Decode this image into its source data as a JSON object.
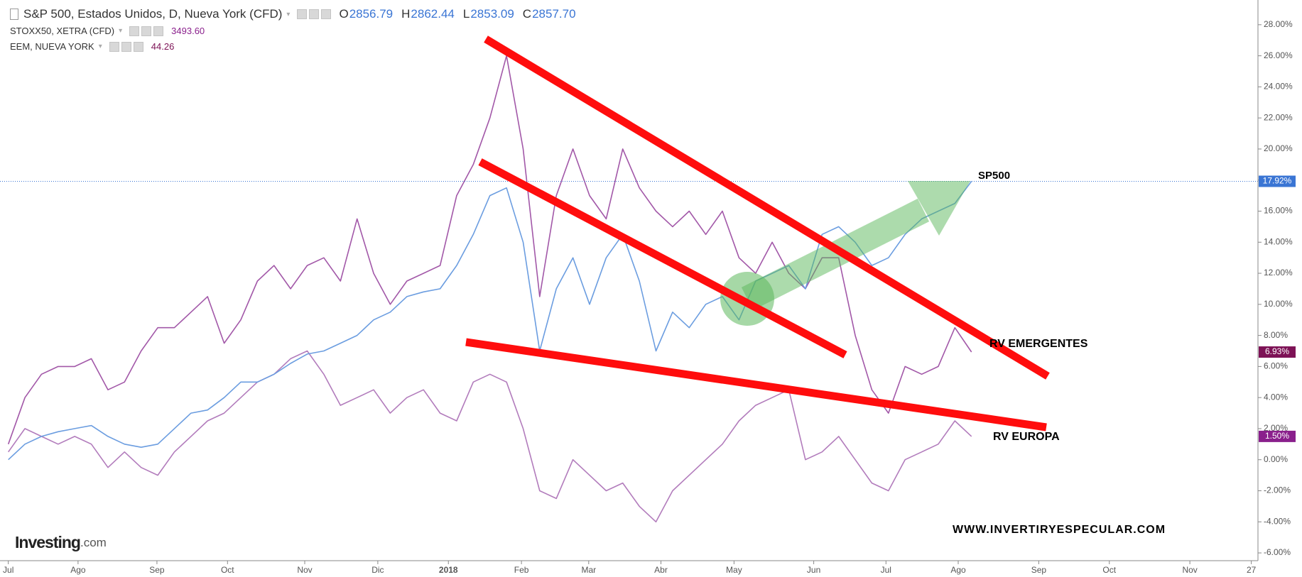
{
  "chart_data": {
    "type": "line",
    "x": [
      0,
      1,
      2,
      3,
      4,
      5,
      6,
      7,
      8,
      9,
      10,
      11,
      12,
      13,
      14,
      15,
      16,
      17,
      18,
      19,
      20,
      21,
      22,
      23,
      24,
      25,
      26,
      27,
      28,
      29,
      30,
      31,
      32,
      33,
      34,
      35,
      36,
      37,
      38,
      39,
      40,
      41,
      42,
      43,
      44,
      45,
      46,
      47,
      48,
      49,
      50,
      51,
      52,
      53,
      54,
      55,
      56,
      57,
      58
    ],
    "xlim": [
      -0.5,
      75.25
    ],
    "xticks": [
      {
        "value": 0,
        "label": "Jul"
      },
      {
        "value": 4.2,
        "label": "Ago"
      },
      {
        "value": 8.95,
        "label": "Sep"
      },
      {
        "value": 13.2,
        "label": "Oct"
      },
      {
        "value": 17.85,
        "label": "Nov"
      },
      {
        "value": 22.25,
        "label": "Dic"
      },
      {
        "value": 26.5,
        "label": "2018"
      },
      {
        "value": 30.9,
        "label": "Feb"
      },
      {
        "value": 34.95,
        "label": "Mar"
      },
      {
        "value": 39.3,
        "label": "Abr"
      },
      {
        "value": 43.7,
        "label": "May"
      },
      {
        "value": 48.5,
        "label": "Jun"
      },
      {
        "value": 52.85,
        "label": "Jul"
      },
      {
        "value": 57.2,
        "label": "Ago"
      },
      {
        "value": 62.05,
        "label": "Sep"
      },
      {
        "value": 66.3,
        "label": "Oct"
      },
      {
        "value": 71.15,
        "label": "Nov"
      },
      {
        "value": 74.85,
        "label": "27"
      }
    ],
    "ylim": [
      -6.5,
      29.5
    ],
    "yticks": [
      {
        "value": -6,
        "label": "-6.00%"
      },
      {
        "value": -4,
        "label": "-4.00%"
      },
      {
        "value": -2,
        "label": "-2.00%"
      },
      {
        "value": 0,
        "label": "0.00%"
      },
      {
        "value": 2,
        "label": "2.00%"
      },
      {
        "value": 4,
        "label": "4.00%"
      },
      {
        "value": 6,
        "label": "6.00%"
      },
      {
        "value": 8,
        "label": "8.00%"
      },
      {
        "value": 10,
        "label": "10.00%"
      },
      {
        "value": 12,
        "label": "12.00%"
      },
      {
        "value": 14,
        "label": "14.00%"
      },
      {
        "value": 16,
        "label": "16.00%"
      },
      {
        "value": 18,
        "label": "18.00%"
      },
      {
        "value": 20,
        "label": "20.00%"
      },
      {
        "value": 22,
        "label": "22.00%"
      },
      {
        "value": 24,
        "label": "24.00%"
      },
      {
        "value": 26,
        "label": "26.00%"
      },
      {
        "value": 28,
        "label": "28.00%"
      }
    ],
    "grid": false,
    "series": [
      {
        "name": "S&P 500, Estados Unidos, D, Nueva York (CFD)",
        "color": "#6b9de0",
        "label_color": "#3a75d4",
        "last_line": true,
        "quotes": [
          {
            "label": "O",
            "value": "2856.79"
          },
          {
            "label": "H",
            "value": "2862.44"
          },
          {
            "label": "L",
            "value": "2853.09"
          },
          {
            "label": "C",
            "value": "2857.70"
          }
        ],
        "values": [
          0.0,
          1.0,
          1.5,
          1.8,
          2.0,
          2.2,
          1.5,
          1.0,
          0.8,
          1.0,
          2.0,
          3.0,
          3.2,
          4.0,
          5.0,
          5.0,
          5.5,
          6.2,
          6.8,
          7.0,
          7.5,
          8.0,
          9.0,
          9.5,
          10.5,
          10.8,
          11.0,
          12.5,
          14.5,
          17.0,
          17.5,
          14.0,
          7.0,
          11.0,
          13.0,
          10.0,
          13.0,
          14.5,
          11.5,
          7.0,
          9.5,
          8.5,
          10.0,
          10.5,
          9.0,
          11.5,
          12.0,
          12.5,
          11.0,
          14.5,
          15.0,
          14.0,
          12.5,
          13.0,
          14.5,
          15.5,
          16.0,
          16.5,
          17.92
        ],
        "value_labels": [
          null,
          null,
          null,
          null,
          null,
          null,
          null,
          null,
          null,
          null,
          null,
          null,
          null,
          null,
          null,
          null,
          null,
          null,
          null,
          null,
          null,
          null,
          null,
          null,
          null,
          null,
          null,
          null,
          null,
          null,
          null,
          null,
          null,
          null,
          null,
          null,
          null,
          null,
          null,
          null,
          null,
          null,
          null,
          null,
          null,
          null,
          null,
          null,
          null,
          null,
          null,
          null,
          null,
          null,
          null,
          null,
          null,
          null,
          "17.92%"
        ]
      },
      {
        "name": "STOXX50, XETRA (CFD)",
        "color": "#b27cbc",
        "label_color": "#8a1f8c",
        "quotes": [
          {
            "value": "3493.60"
          }
        ],
        "values": [
          0.5,
          2.0,
          1.5,
          1.0,
          1.5,
          1.0,
          -0.5,
          0.5,
          -0.5,
          -1.0,
          0.5,
          1.5,
          2.5,
          3.0,
          4.0,
          5.0,
          5.5,
          6.5,
          7.0,
          5.5,
          3.5,
          4.0,
          4.5,
          3.0,
          4.0,
          4.5,
          3.0,
          2.5,
          5.0,
          5.5,
          5.0,
          2.0,
          -2.0,
          -2.5,
          0.0,
          -1.0,
          -2.0,
          -1.5,
          -3.0,
          -4.0,
          -2.0,
          -1.0,
          0.0,
          1.0,
          2.5,
          3.5,
          4.0,
          4.5,
          0.0,
          0.5,
          1.5,
          0.0,
          -1.5,
          -2.0,
          0.0,
          0.5,
          1.0,
          2.5,
          1.5
        ],
        "value_labels": [
          null,
          null,
          null,
          null,
          null,
          null,
          null,
          null,
          null,
          null,
          null,
          null,
          null,
          null,
          null,
          null,
          null,
          null,
          null,
          null,
          null,
          null,
          null,
          null,
          null,
          null,
          null,
          null,
          null,
          null,
          null,
          null,
          null,
          null,
          null,
          null,
          null,
          null,
          null,
          null,
          null,
          null,
          null,
          null,
          null,
          null,
          null,
          null,
          null,
          null,
          null,
          null,
          null,
          null,
          null,
          null,
          null,
          null,
          "1.50%"
        ]
      },
      {
        "name": "EEM, NUEVA YORK",
        "color": "#a258a8",
        "label_color": "#7d1256",
        "quotes": [
          {
            "value": "44.26"
          }
        ],
        "values": [
          1.0,
          4.0,
          5.5,
          6.0,
          6.0,
          6.5,
          4.5,
          5.0,
          7.0,
          8.5,
          8.5,
          9.5,
          10.5,
          7.5,
          9.0,
          11.5,
          12.5,
          11.0,
          12.5,
          13.0,
          11.5,
          15.5,
          12.0,
          10.0,
          11.5,
          12.0,
          12.5,
          17.0,
          19.0,
          22.0,
          26.0,
          20.0,
          10.5,
          17.0,
          20.0,
          17.0,
          15.5,
          20.0,
          17.5,
          16.0,
          15.0,
          16.0,
          14.5,
          16.0,
          13.0,
          12.0,
          14.0,
          12.0,
          11.0,
          13.0,
          13.0,
          8.0,
          4.5,
          3.0,
          6.0,
          5.5,
          6.0,
          8.5,
          6.93
        ],
        "value_labels": [
          null,
          null,
          null,
          null,
          null,
          null,
          null,
          null,
          null,
          null,
          null,
          null,
          null,
          null,
          null,
          null,
          null,
          null,
          null,
          null,
          null,
          null,
          null,
          null,
          null,
          null,
          null,
          null,
          null,
          null,
          null,
          null,
          null,
          null,
          null,
          null,
          null,
          null,
          null,
          null,
          null,
          null,
          null,
          null,
          null,
          null,
          null,
          null,
          null,
          null,
          null,
          null,
          null,
          null,
          null,
          null,
          null,
          null,
          "6.93%"
        ]
      }
    ],
    "annotations": [
      "SP500",
      "RV EMERGENTES",
      "RV EUROPA"
    ],
    "watermark": "WWW.INVERTIRYESPECULAR.COM",
    "logo": [
      "Investing",
      ".com"
    ]
  }
}
